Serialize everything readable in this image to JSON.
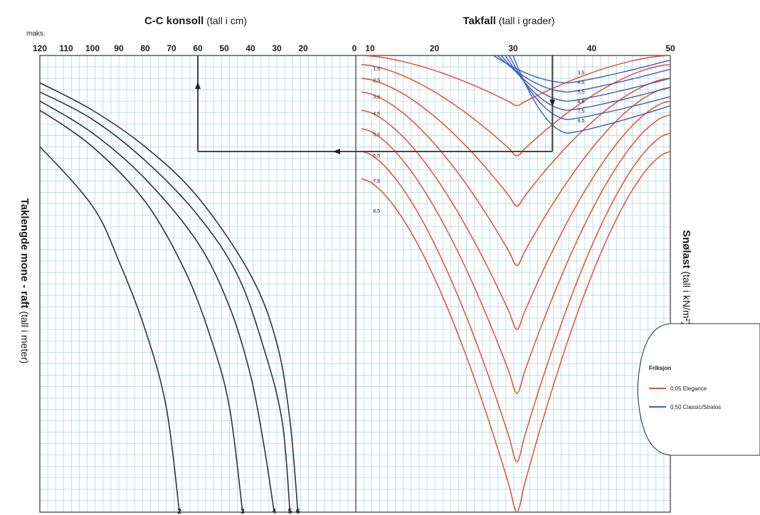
{
  "chart_data": {
    "type": "line",
    "left_panel": {
      "title_bold": "C-C konsoll",
      "title_rest": "(tall i cm)",
      "max_label": "maks.",
      "x_ticks": [
        120,
        110,
        100,
        90,
        80,
        70,
        60,
        50,
        40,
        30,
        20,
        0
      ],
      "x_range": [
        120,
        0
      ],
      "ylabel_bold": "Taklengde mone - raft",
      "ylabel_rest": "(tall i meter)",
      "curve_labels": [
        "2",
        "3",
        "4",
        "5",
        "6"
      ],
      "curves": [
        {
          "name": "6",
          "points": [
            [
              120,
              0.06
            ],
            [
              100,
              0.12
            ],
            [
              80,
              0.2
            ],
            [
              60,
              0.31
            ],
            [
              40,
              0.48
            ],
            [
              30,
              0.63
            ],
            [
              25,
              0.8
            ],
            [
              22,
              1.0
            ]
          ]
        },
        {
          "name": "5",
          "points": [
            [
              120,
              0.08
            ],
            [
              100,
              0.14
            ],
            [
              80,
              0.23
            ],
            [
              60,
              0.35
            ],
            [
              45,
              0.48
            ],
            [
              35,
              0.64
            ],
            [
              28,
              0.8
            ],
            [
              25,
              1.0
            ]
          ]
        },
        {
          "name": "4",
          "points": [
            [
              120,
              0.1
            ],
            [
              100,
              0.17
            ],
            [
              80,
              0.27
            ],
            [
              60,
              0.41
            ],
            [
              48,
              0.55
            ],
            [
              40,
              0.7
            ],
            [
              35,
              0.85
            ],
            [
              31,
              1.0
            ]
          ]
        },
        {
          "name": "3",
          "points": [
            [
              120,
              0.12
            ],
            [
              100,
              0.2
            ],
            [
              80,
              0.32
            ],
            [
              65,
              0.47
            ],
            [
              55,
              0.62
            ],
            [
              48,
              0.77
            ],
            [
              43,
              1.0
            ]
          ]
        },
        {
          "name": "2",
          "points": [
            [
              120,
              0.2
            ],
            [
              100,
              0.33
            ],
            [
              90,
              0.45
            ],
            [
              80,
              0.6
            ],
            [
              72,
              0.77
            ],
            [
              67,
              1.0
            ]
          ]
        }
      ]
    },
    "right_panel": {
      "title_bold": "Takfall",
      "title_rest": "(tall i grader)",
      "x_ticks": [
        10,
        20,
        30,
        40,
        50
      ],
      "x_range": [
        10,
        50
      ],
      "ylabel_bold": "Snølast",
      "ylabel_rest": "(tall i kN/m²)",
      "legend_title": "Friksjon",
      "legend_items": [
        {
          "label": "0,05 Elegance",
          "color": "#e8502a"
        },
        {
          "label": "0,50 Classic/Stratos",
          "color": "#3b5cc4"
        }
      ],
      "orange_series_labels": [
        "1,5",
        "2,5",
        "3,5",
        "4,5",
        "5,5",
        "6,5",
        "7,5",
        "8,5"
      ],
      "orange_series": [
        {
          "name": "1,5",
          "min_y": 0.11,
          "left_y": 0.0,
          "right_y": 0.0
        },
        {
          "name": "2,5",
          "min_y": 0.22,
          "left_y": 0.02,
          "right_y": 0.02
        },
        {
          "name": "3,5",
          "min_y": 0.33,
          "left_y": 0.05,
          "right_y": 0.05
        },
        {
          "name": "4,5",
          "min_y": 0.46,
          "left_y": 0.08,
          "right_y": 0.07
        },
        {
          "name": "5,5",
          "min_y": 0.6,
          "left_y": 0.12,
          "right_y": 0.1
        },
        {
          "name": "6,5",
          "min_y": 0.74,
          "left_y": 0.16,
          "right_y": 0.13
        },
        {
          "name": "7,5",
          "min_y": 0.89,
          "left_y": 0.21,
          "right_y": 0.17
        },
        {
          "name": "8,5",
          "min_y": 1.0,
          "left_y": 0.27,
          "right_y": 0.21
        }
      ],
      "blue_series_labels": [
        "3,5",
        "4,5",
        "5,5",
        "6,5",
        "7,5",
        "8,5"
      ],
      "blue_series": [
        {
          "name": "3,5",
          "x_start": 27.5,
          "min_y": 0.06,
          "right_y": 0.01
        },
        {
          "name": "4,5",
          "x_start": 28.0,
          "min_y": 0.08,
          "right_y": 0.03
        },
        {
          "name": "5,5",
          "x_start": 28.5,
          "min_y": 0.1,
          "right_y": 0.05
        },
        {
          "name": "6,5",
          "x_start": 29.0,
          "min_y": 0.12,
          "right_y": 0.07
        },
        {
          "name": "7,5",
          "x_start": 29.5,
          "min_y": 0.14,
          "right_y": 0.09
        },
        {
          "name": "8,5",
          "x_start": 30.0,
          "min_y": 0.17,
          "right_y": 0.11
        }
      ]
    },
    "example_path": {
      "angle_deg": 35,
      "cc_cm": 60
    },
    "grid": true,
    "colors": {
      "grid": "#9fd3ef",
      "curves_left": "#333333",
      "orange": "#e8502a",
      "blue": "#3b5cc4",
      "guide": "#444444"
    }
  }
}
